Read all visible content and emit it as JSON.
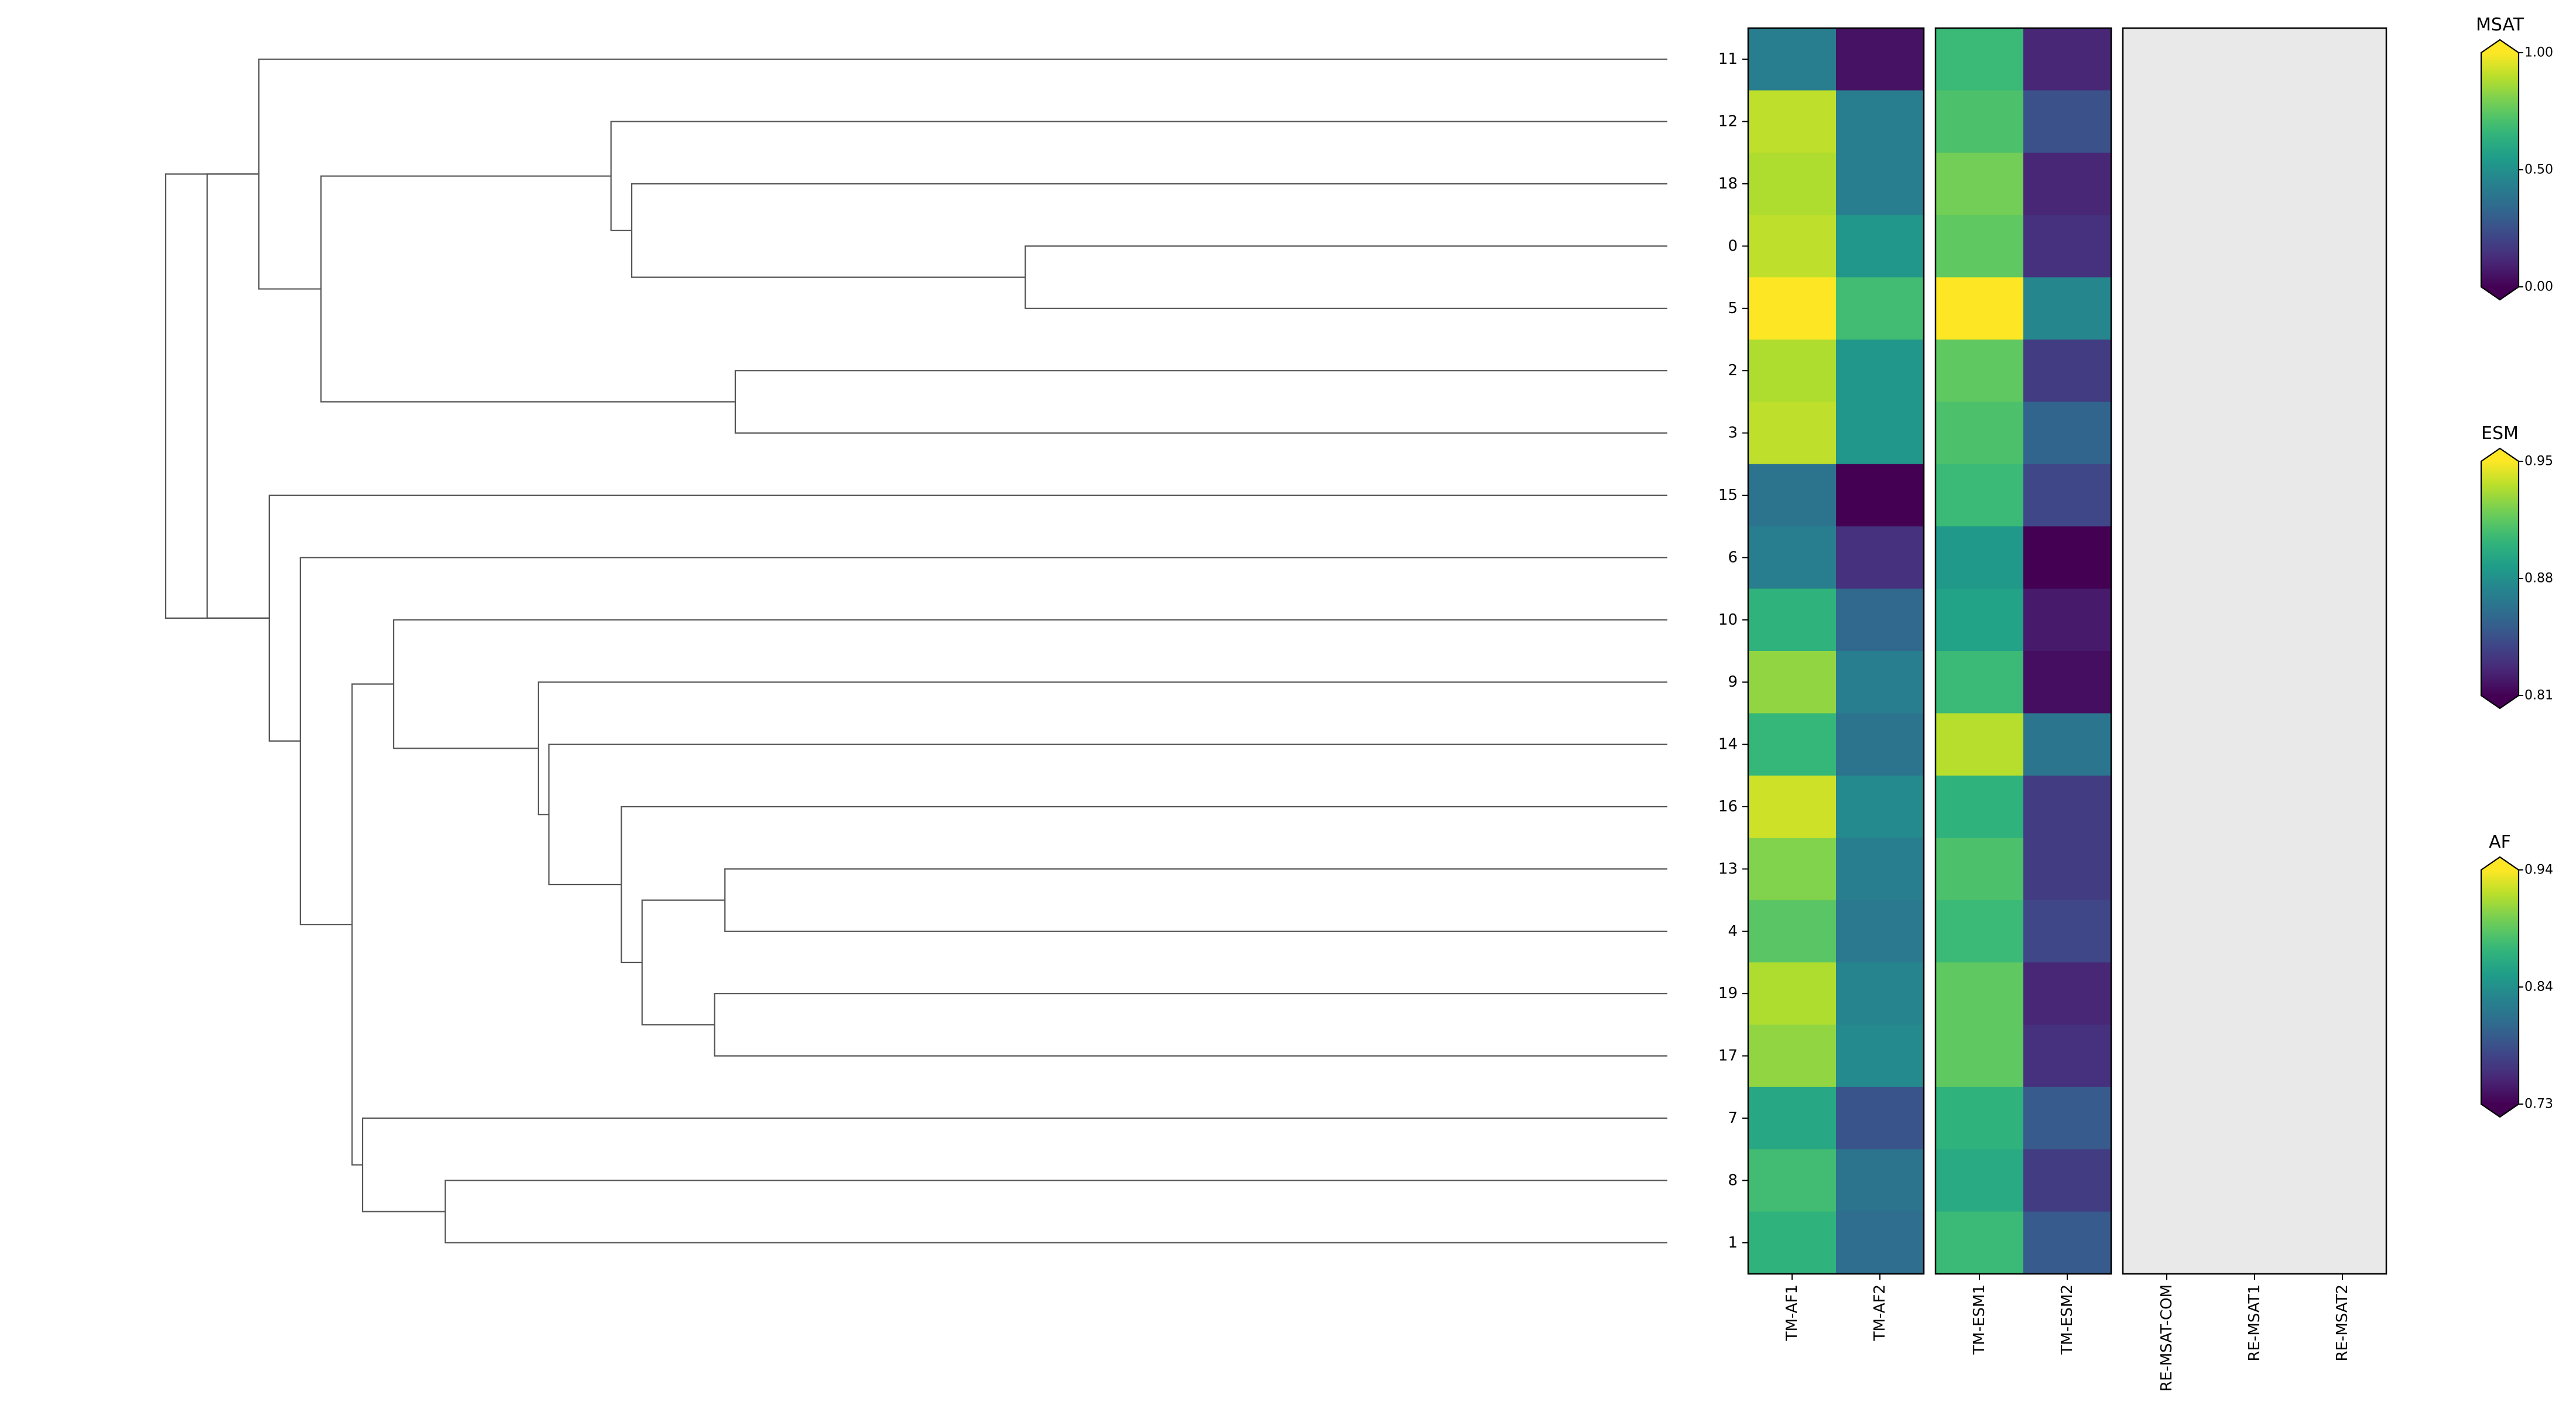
{
  "chart_data": {
    "type": "heatmap",
    "title": "",
    "row_order": [
      "11",
      "12",
      "18",
      "0",
      "5",
      "2",
      "3",
      "15",
      "6",
      "10",
      "9",
      "14",
      "16",
      "13",
      "4",
      "19",
      "17",
      "7",
      "8",
      "1"
    ],
    "dendrogram": {
      "description": "hierarchical clustering of rows (heights read as relative merge distance, 0 = leaves)",
      "merges": [
        {
          "left": [
            "0"
          ],
          "right": [
            "5"
          ],
          "height": 0.62
        },
        {
          "left": [
            "18"
          ],
          "right": [
            "0",
            "5"
          ],
          "height": 1.0
        },
        {
          "left": [
            "12"
          ],
          "right": [
            "18",
            "0",
            "5"
          ],
          "height": 1.02
        },
        {
          "left": [
            "2"
          ],
          "right": [
            "3"
          ],
          "height": 0.9
        },
        {
          "left": [
            "12",
            "18",
            "0",
            "5"
          ],
          "right": [
            "2",
            "3"
          ],
          "height": 1.3
        },
        {
          "left": [
            "11"
          ],
          "right": [
            "12",
            "18",
            "0",
            "5",
            "2",
            "3"
          ],
          "height": 1.36
        },
        {
          "left": [
            "13"
          ],
          "right": [
            "4"
          ],
          "height": 0.91
        },
        {
          "left": [
            "19"
          ],
          "right": [
            "17"
          ],
          "height": 0.92
        },
        {
          "left": [
            "13",
            "4"
          ],
          "right": [
            "19",
            "17"
          ],
          "height": 0.99
        },
        {
          "left": [
            "16"
          ],
          "right": [
            "13",
            "4",
            "19",
            "17"
          ],
          "height": 1.01
        },
        {
          "left": [
            "14"
          ],
          "right": [
            "16",
            "13",
            "4",
            "19",
            "17"
          ],
          "height": 1.08
        },
        {
          "left": [
            "9"
          ],
          "right": [
            "14",
            "16",
            "13",
            "4",
            "19",
            "17"
          ],
          "height": 1.09
        },
        {
          "left": [
            "10"
          ],
          "right": [
            "9",
            "14",
            "16",
            "13",
            "4",
            "19",
            "17"
          ],
          "height": 1.23
        },
        {
          "left": [
            "8"
          ],
          "right": [
            "1"
          ],
          "height": 1.18
        },
        {
          "left": [
            "7"
          ],
          "right": [
            "8",
            "1"
          ],
          "height": 1.26
        },
        {
          "left": [
            "10",
            "9",
            "14",
            "16",
            "13",
            "4",
            "19",
            "17"
          ],
          "right": [
            "7",
            "8",
            "1"
          ],
          "height": 1.27
        },
        {
          "left": [
            "6"
          ],
          "right": [
            "10",
            "9",
            "14",
            "16",
            "13",
            "4",
            "19",
            "17",
            "7",
            "8",
            "1"
          ],
          "height": 1.32
        },
        {
          "left": [
            "15"
          ],
          "right": [
            "6",
            "10",
            "9",
            "14",
            "16",
            "13",
            "4",
            "19",
            "17",
            "7",
            "8",
            "1"
          ],
          "height": 1.35
        },
        {
          "left": [
            "11",
            "12",
            "18",
            "0",
            "5",
            "2",
            "3"
          ],
          "right": [
            "15",
            "6",
            "10",
            "9",
            "14",
            "16",
            "13",
            "4",
            "19",
            "17",
            "7",
            "8",
            "1"
          ],
          "height": 1.41
        },
        {
          "left": [
            "all_top"
          ],
          "right": [
            "all_bottom"
          ],
          "height": 1.45
        }
      ]
    },
    "panels": [
      {
        "name": "AF",
        "columns": [
          "TM-AF1",
          "TM-AF2"
        ],
        "colorbar": {
          "label": "AF",
          "min": 0.73,
          "max": 0.94,
          "ticks": [
            "0.73",
            "0.84",
            "0.94"
          ]
        },
        "values": [
          [
            0.82,
            0.74
          ],
          [
            0.92,
            0.82
          ],
          [
            0.915,
            0.82
          ],
          [
            0.92,
            0.84
          ],
          [
            0.945,
            0.875
          ],
          [
            0.915,
            0.84
          ],
          [
            0.92,
            0.84
          ],
          [
            0.81,
            0.73
          ],
          [
            0.82,
            0.76
          ],
          [
            0.865,
            0.8
          ],
          [
            0.905,
            0.82
          ],
          [
            0.87,
            0.81
          ],
          [
            0.925,
            0.83
          ],
          [
            0.9,
            0.82
          ],
          [
            0.885,
            0.815
          ],
          [
            0.915,
            0.825
          ],
          [
            0.905,
            0.83
          ],
          [
            0.855,
            0.785
          ],
          [
            0.875,
            0.81
          ],
          [
            0.865,
            0.805
          ]
        ]
      },
      {
        "name": "ESM",
        "columns": [
          "TM-ESM1",
          "TM-ESM2"
        ],
        "colorbar": {
          "label": "ESM",
          "min": 0.81,
          "max": 0.95,
          "ticks": [
            "0.81",
            "0.88",
            "0.95"
          ]
        },
        "values": [
          [
            0.905,
            0.825
          ],
          [
            0.91,
            0.845
          ],
          [
            0.92,
            0.825
          ],
          [
            0.915,
            0.83
          ],
          [
            0.95,
            0.875
          ],
          [
            0.915,
            0.835
          ],
          [
            0.91,
            0.855
          ],
          [
            0.905,
            0.84
          ],
          [
            0.885,
            0.81
          ],
          [
            0.89,
            0.82
          ],
          [
            0.905,
            0.815
          ],
          [
            0.935,
            0.865
          ],
          [
            0.9,
            0.835
          ],
          [
            0.91,
            0.835
          ],
          [
            0.905,
            0.84
          ],
          [
            0.915,
            0.825
          ],
          [
            0.915,
            0.83
          ],
          [
            0.9,
            0.85
          ],
          [
            0.895,
            0.835
          ],
          [
            0.905,
            0.85
          ]
        ]
      },
      {
        "name": "MSAT",
        "columns": [
          "RE-MSAT-COM",
          "RE-MSAT1",
          "RE-MSAT2"
        ],
        "colorbar": {
          "label": "MSAT",
          "min": 0.0,
          "max": 1.0,
          "ticks": [
            "0.00",
            "0.50",
            "1.00"
          ]
        },
        "values": null,
        "missing_color": "#e9e9e9"
      }
    ],
    "colormap": "viridis"
  }
}
